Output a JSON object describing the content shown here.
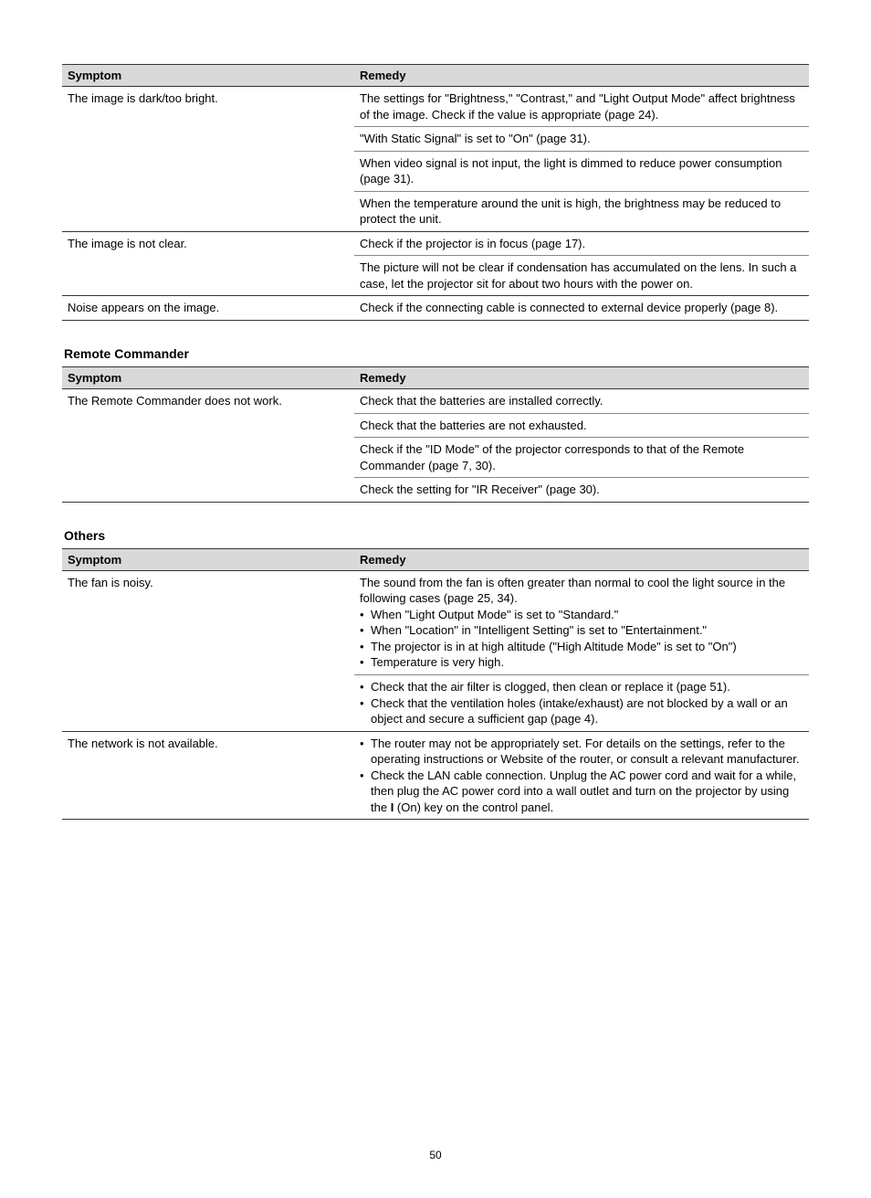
{
  "table1": {
    "headers": {
      "symptom": "Symptom",
      "remedy": "Remedy"
    },
    "rows": [
      {
        "symptom": "The image is dark/too bright.",
        "remedies": [
          "The settings for \"Brightness,\" \"Contrast,\" and \"Light Output Mode\" affect brightness of the image. Check if the value is appropriate (page 24).",
          "\"With Static Signal\" is set to \"On\" (page 31).",
          "When video signal is not input, the light is dimmed to reduce power consumption (page 31).",
          "When the temperature around the unit is high, the brightness may be reduced to protect the unit."
        ]
      },
      {
        "symptom": "The image is not clear.",
        "remedies": [
          "Check if the projector is in focus (page 17).",
          "The picture will not be clear if condensation has accumulated on the lens. In such a case, let the projector sit for about two hours with the power on."
        ]
      },
      {
        "symptom": "Noise appears on the image.",
        "remedies": [
          "Check if the connecting cable is connected to external device properly (page 8)."
        ]
      }
    ]
  },
  "section2": {
    "heading": "Remote Commander",
    "headers": {
      "symptom": "Symptom",
      "remedy": "Remedy"
    },
    "rows": [
      {
        "symptom": "The Remote Commander does not work.",
        "remedies": [
          "Check that the batteries are installed correctly.",
          "Check that the batteries are not exhausted.",
          "Check if the \"ID Mode\" of the projector corresponds to that of the Remote Commander (page 7, 30).",
          "Check the setting for \"IR Receiver\" (page 30)."
        ]
      }
    ]
  },
  "section3": {
    "heading": "Others",
    "headers": {
      "symptom": "Symptom",
      "remedy": "Remedy"
    },
    "rows": [
      {
        "symptom": "The fan is noisy.",
        "remedyBlocks": [
          {
            "intro": "The sound from the fan is often greater than normal to cool the light source in the following cases (page 25, 34).",
            "bullets": [
              "When \"Light Output Mode\" is set to \"Standard.\"",
              "When \"Location\" in \"Intelligent Setting\" is set to \"Entertainment.\"",
              "The projector is in at high altitude (\"High Altitude Mode\" is set to \"On\")",
              "Temperature is very high."
            ]
          },
          {
            "bullets": [
              "Check that the air filter is clogged, then clean or replace it (page 51).",
              "Check that the ventilation holes (intake/exhaust) are not blocked by a wall or an object and secure a sufficient gap (page 4)."
            ]
          }
        ]
      },
      {
        "symptom": "The network is not available.",
        "remedyBlocks": [
          {
            "bullets": [
              "The router may not be appropriately set. For details on the settings, refer to the operating instructions or Website of the router, or consult a relevant manufacturer.",
              "Check the LAN cable connection. Unplug the AC power cord and wait for a while, then plug the AC power cord into a wall outlet and turn on the projector by using the **I** (On) key on the control panel."
            ]
          }
        ]
      }
    ]
  },
  "pageNumber": "50"
}
